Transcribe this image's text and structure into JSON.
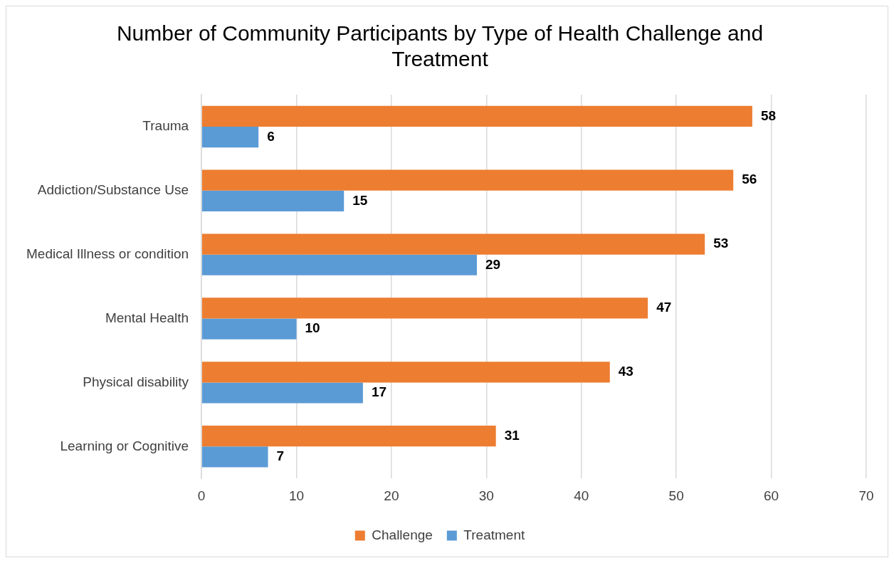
{
  "chart_data": {
    "type": "bar",
    "orientation": "horizontal",
    "title": "Number of Community Participants by Type of Health Challenge and Treatment",
    "categories": [
      "Trauma",
      "Addiction/Substance Use",
      "Medical Illness or condition",
      "Mental Health",
      "Physical disability",
      "Learning or Cognitive"
    ],
    "series": [
      {
        "name": "Challenge",
        "color": "#ed7d31",
        "values": [
          58,
          56,
          53,
          47,
          43,
          31
        ]
      },
      {
        "name": "Treatment",
        "color": "#5b9bd5",
        "values": [
          6,
          15,
          29,
          10,
          17,
          7
        ]
      }
    ],
    "xlim": [
      0,
      70
    ],
    "xticks": [
      0,
      10,
      20,
      30,
      40,
      50,
      60,
      70
    ],
    "grid": "x",
    "legend": "bottom",
    "data_labels": true
  }
}
